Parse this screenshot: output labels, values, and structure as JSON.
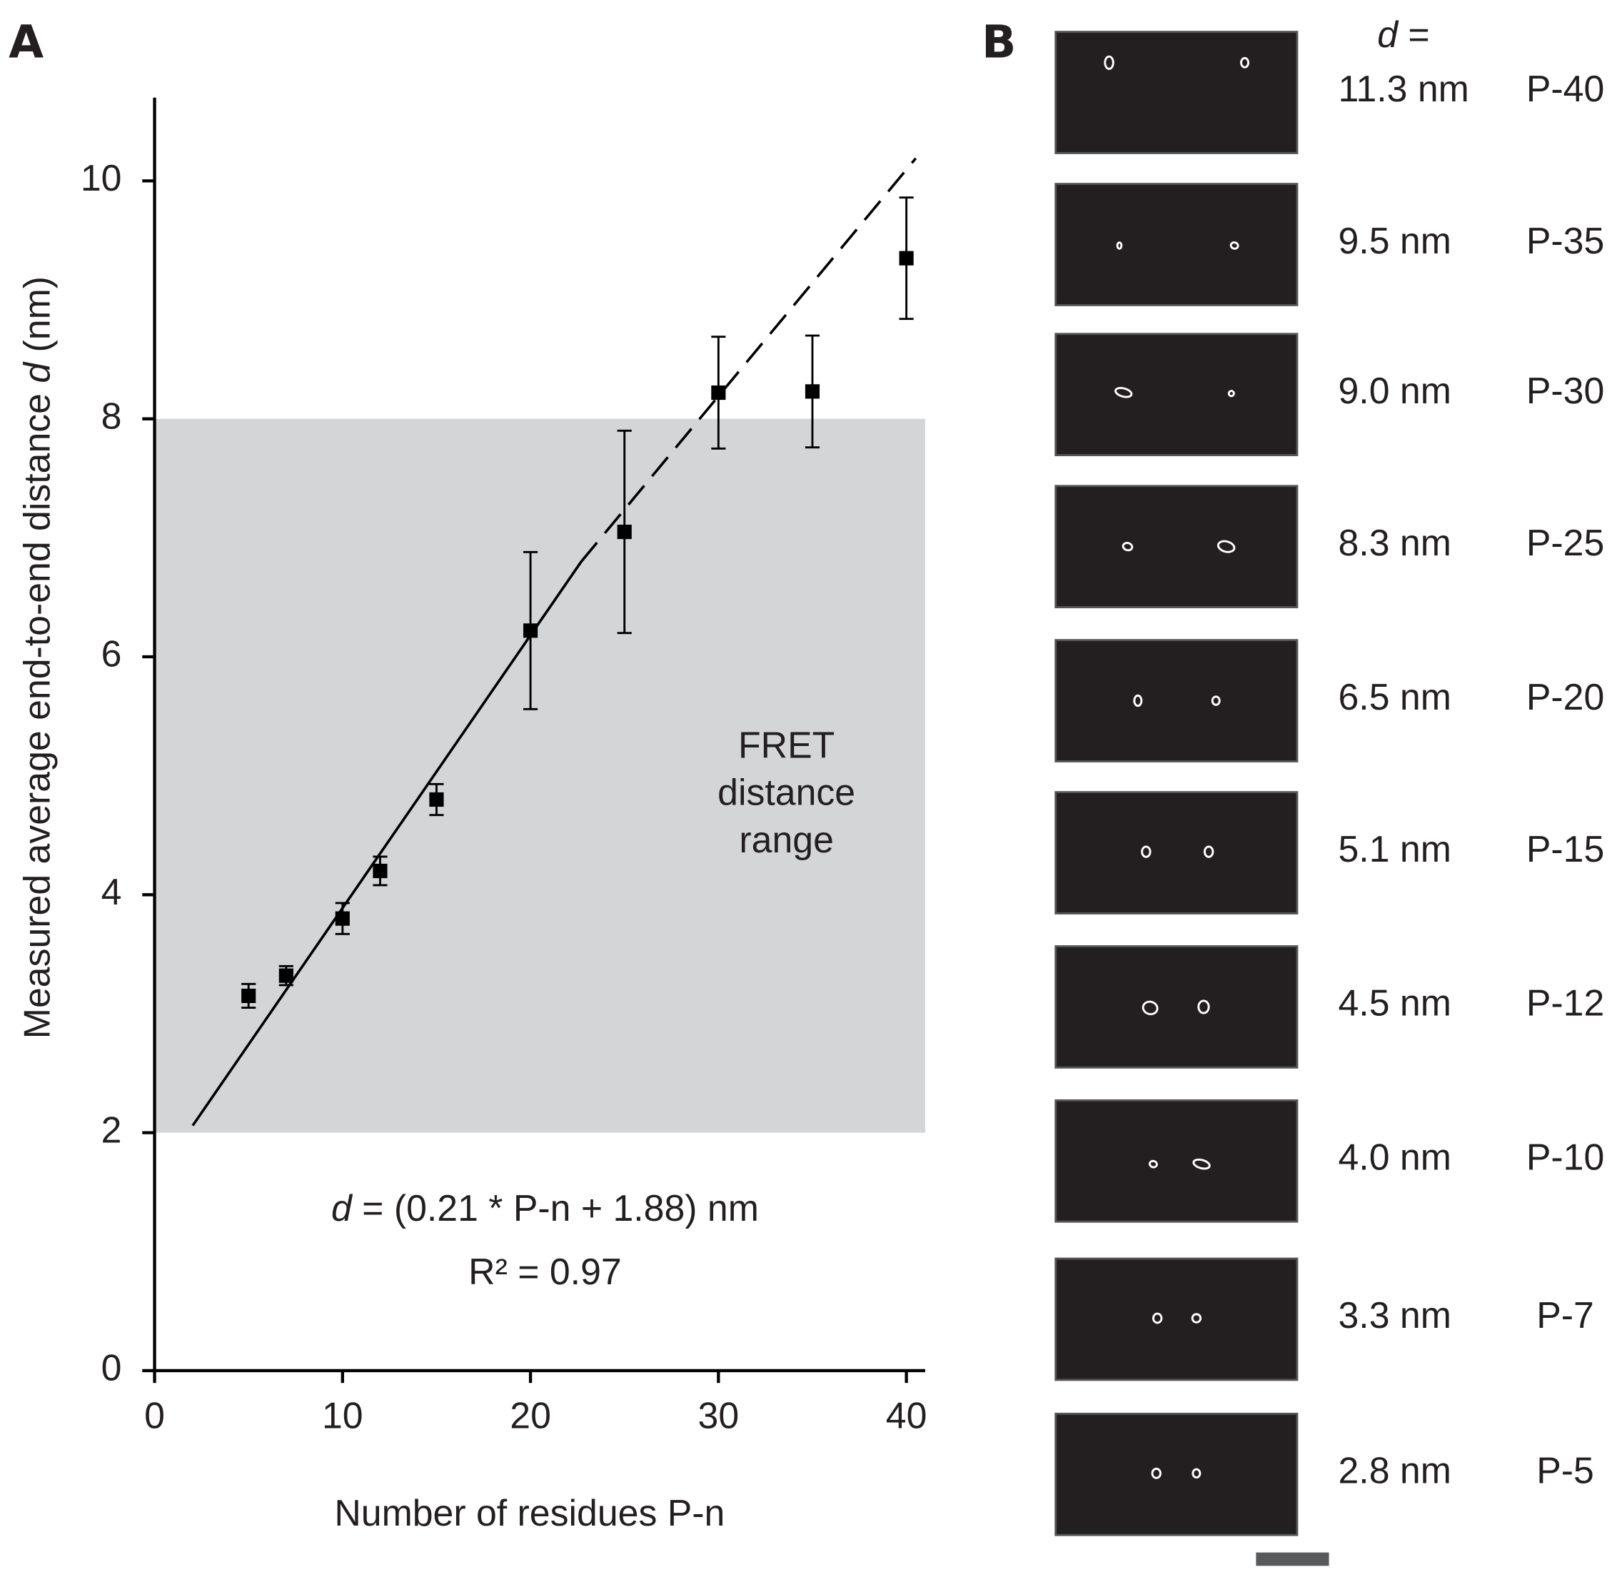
{
  "chart_data": {
    "type": "scatter",
    "panel_label": "A",
    "xlabel": "Number of residues P-n",
    "ylabel": [
      "Measured average end-to-end distance ",
      "d",
      "  (nm)"
    ],
    "xlim": [
      0,
      41
    ],
    "ylim": [
      0,
      10.7
    ],
    "xticks": [
      0,
      10,
      20,
      30,
      40
    ],
    "yticks": [
      0,
      2,
      4,
      6,
      8,
      10
    ],
    "series": [
      {
        "name": "P-n",
        "color": "#000000",
        "x": [
          5,
          7,
          10,
          12,
          15,
          20,
          25,
          30,
          35,
          40
        ],
        "values": [
          3.15,
          3.32,
          3.8,
          4.2,
          4.8,
          6.22,
          7.05,
          8.22,
          8.23,
          9.35
        ],
        "errors": [
          0.1,
          0.08,
          0.13,
          0.12,
          0.13,
          0.66,
          0.85,
          0.47,
          0.47,
          0.51
        ]
      }
    ],
    "fit_line": {
      "x": [
        2.03,
        22.7
      ],
      "values": [
        2.06,
        6.8
      ]
    },
    "fit_line_extrapolated": {
      "x": [
        22.7,
        40.5
      ],
      "values": [
        6.8,
        10.19
      ]
    },
    "shade": {
      "ylim": [
        2,
        8
      ],
      "color": "#d4d5d7",
      "label": [
        "FRET",
        "distance",
        "range"
      ]
    },
    "equation": [
      "d",
      " = (0.21 * P-n + 1.88) nm"
    ],
    "r_squared": "R² = 0.97"
  },
  "panel_b": {
    "panel_label": "B",
    "header": [
      "d",
      " ="
    ],
    "rows": [
      {
        "distance": "11.3 nm",
        "name": "P-40"
      },
      {
        "distance": "9.5 nm",
        "name": "P-35"
      },
      {
        "distance": "9.0 nm",
        "name": "P-30"
      },
      {
        "distance": "8.3 nm",
        "name": "P-25"
      },
      {
        "distance": "6.5 nm",
        "name": "P-20"
      },
      {
        "distance": "5.1 nm",
        "name": "P-15"
      },
      {
        "distance": "4.5 nm",
        "name": "P-12"
      },
      {
        "distance": "4.0 nm",
        "name": "P-10"
      },
      {
        "distance": "3.3 nm",
        "name": "P-7"
      },
      {
        "distance": "2.8 nm",
        "name": "P-5"
      }
    ]
  }
}
